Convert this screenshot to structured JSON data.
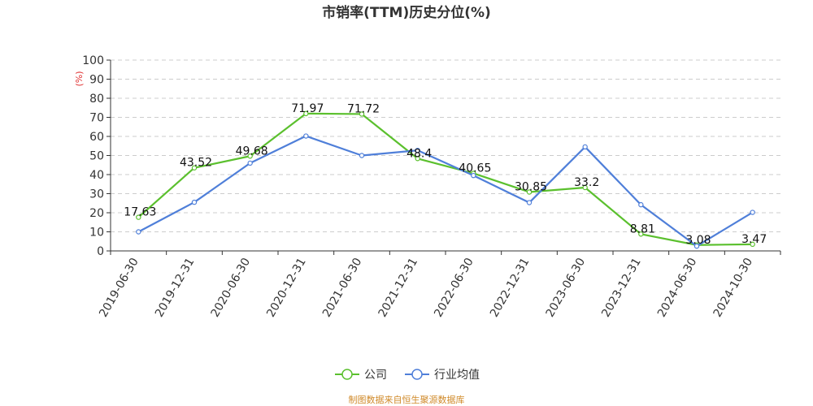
{
  "chart_data": {
    "type": "line",
    "title": "市销率(TTM)历史分位(%)",
    "y_unit": "(%)",
    "ylim": [
      0,
      100
    ],
    "yticks": [
      0,
      10,
      20,
      30,
      40,
      50,
      60,
      70,
      80,
      90,
      100
    ],
    "grid": true,
    "legend_position": "bottom",
    "categories": [
      "2019-06-30",
      "2019-12-31",
      "2020-06-30",
      "2020-12-31",
      "2021-06-30",
      "2021-12-31",
      "2022-06-30",
      "2022-12-31",
      "2023-06-30",
      "2023-12-31",
      "2024-06-30",
      "2024-10-30"
    ],
    "series": [
      {
        "name": "公司",
        "color": "#5bc02e",
        "values": [
          17.63,
          43.52,
          49.68,
          71.97,
          71.72,
          48.4,
          40.65,
          30.85,
          33.2,
          8.81,
          3.08,
          3.47
        ],
        "labels": [
          "17.63",
          "43.52",
          "49.68",
          "71.97",
          "71.72",
          "48.4",
          "40.65",
          "30.85",
          "33.2",
          "8.81",
          "3.08",
          "3.47"
        ]
      },
      {
        "name": "行业均值",
        "color": "#4f7fd9",
        "values": [
          10,
          25.5,
          46,
          60.2,
          50,
          52.7,
          39.5,
          25.3,
          54.5,
          24.2,
          2.5,
          20.2
        ]
      }
    ],
    "source": "制图数据来自恒生聚源数据库"
  }
}
